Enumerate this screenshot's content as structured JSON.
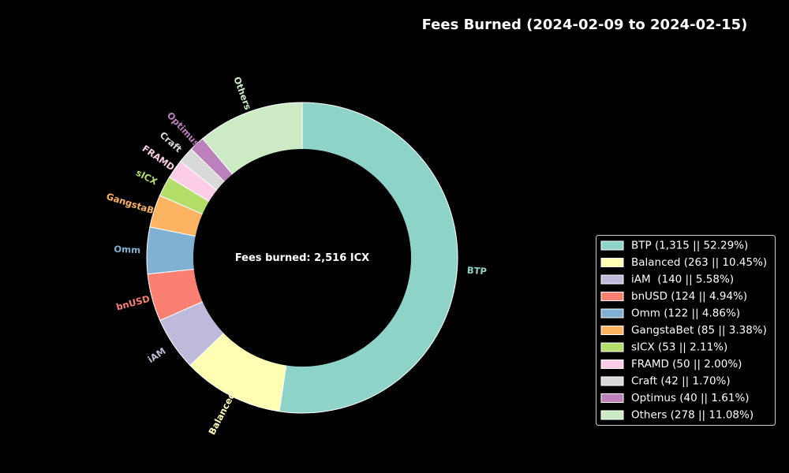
{
  "chart_data": {
    "type": "pie",
    "title": "Fees Burned (2024-02-09 to 2024-02-15)",
    "center_label": "Fees burned: 2,516 ICX",
    "legend_position": "right",
    "slices": [
      {
        "label": "BTP",
        "value": 1315,
        "legend": "BTP (1,315 || 52.29%)",
        "color": "#8dd3c7"
      },
      {
        "label": "Balanced",
        "value": 263,
        "legend": "Balanced (263 || 10.45%)",
        "color": "#ffffb3"
      },
      {
        "label": "iAM",
        "value": 140,
        "legend": "iAM  (140 || 5.58%)",
        "color": "#bebada"
      },
      {
        "label": "bnUSD",
        "value": 124,
        "legend": "bnUSD (124 || 4.94%)",
        "color": "#fb8072"
      },
      {
        "label": "Omm",
        "value": 122,
        "legend": "Omm (122 || 4.86%)",
        "color": "#80b1d3"
      },
      {
        "label": "GangstaBet",
        "value": 85,
        "legend": "GangstaBet (85 || 3.38%)",
        "color": "#fdb462"
      },
      {
        "label": "sICX",
        "value": 53,
        "legend": "sICX (53 || 2.11%)",
        "color": "#b3de69"
      },
      {
        "label": "FRAMD",
        "value": 50,
        "legend": "FRAMD (50 || 2.00%)",
        "color": "#fccde5"
      },
      {
        "label": "Craft",
        "value": 42,
        "legend": "Craft (42 || 1.70%)",
        "color": "#d9d9d9"
      },
      {
        "label": "Optimus",
        "value": 40,
        "legend": "Optimus (40 || 1.61%)",
        "color": "#bc80bd"
      },
      {
        "label": "Others",
        "value": 278,
        "legend": "Others (278 || 11.08%)",
        "color": "#ccebc5"
      }
    ]
  }
}
